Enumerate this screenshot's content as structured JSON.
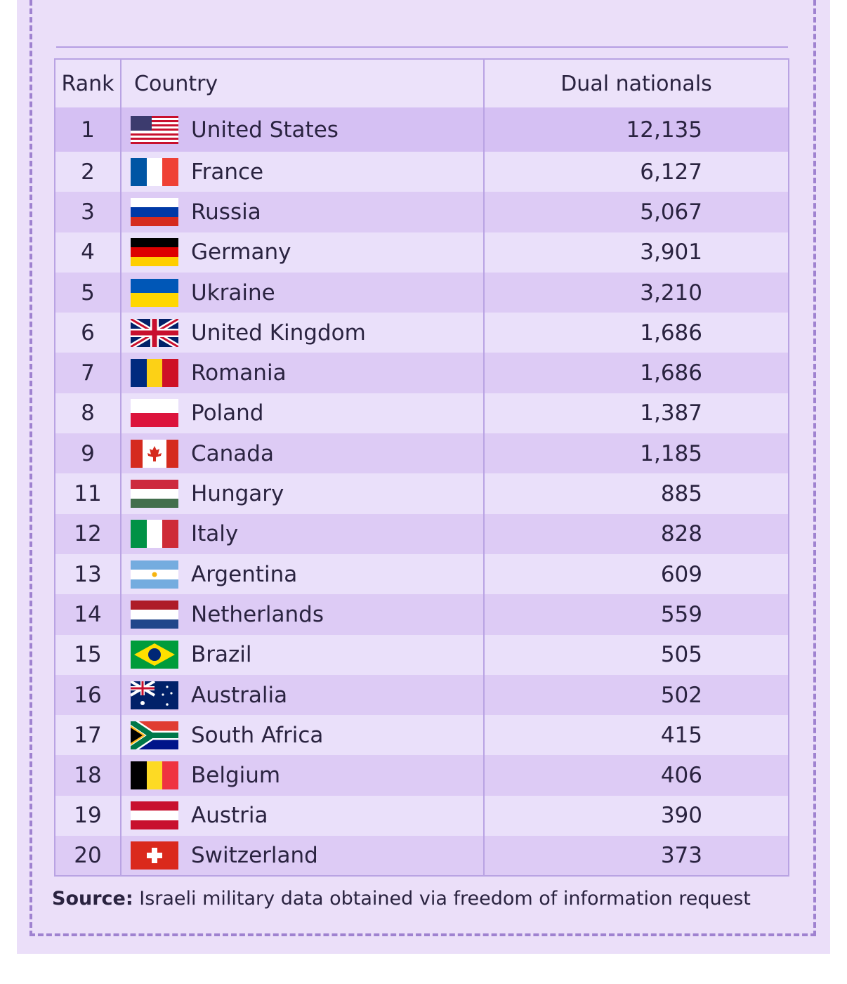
{
  "table": {
    "header": [
      "Rank",
      "Country",
      "Dual nationals"
    ],
    "rows": [
      [
        "1",
        "United States",
        "12,135"
      ],
      [
        "2",
        "France",
        "6,127"
      ],
      [
        "3",
        "Russia",
        "5,067"
      ],
      [
        "4",
        "Germany",
        "3,901"
      ],
      [
        "5",
        "Ukraine",
        "3,210"
      ],
      [
        "6",
        "United Kingdom",
        "1,686"
      ],
      [
        "7",
        "Romania",
        "1,686"
      ],
      [
        "8",
        "Poland",
        "1,387"
      ],
      [
        "9",
        "Canada",
        "1,185"
      ],
      [
        "11",
        "Hungary",
        "885"
      ],
      [
        "12",
        "Italy",
        "828"
      ],
      [
        "13",
        "Argentina",
        "609"
      ],
      [
        "14",
        "Netherlands",
        "559"
      ],
      [
        "15",
        "Brazil",
        "505"
      ],
      [
        "16",
        "Australia",
        "502"
      ],
      [
        "17",
        "South Africa",
        "415"
      ],
      [
        "18",
        "Belgium",
        "406"
      ],
      [
        "19",
        "Austria",
        "390"
      ],
      [
        "20",
        "Switzerland",
        "373"
      ]
    ]
  },
  "source": {
    "label": "Source:",
    "text": "Israeli military data obtained via freedom of information request"
  }
}
